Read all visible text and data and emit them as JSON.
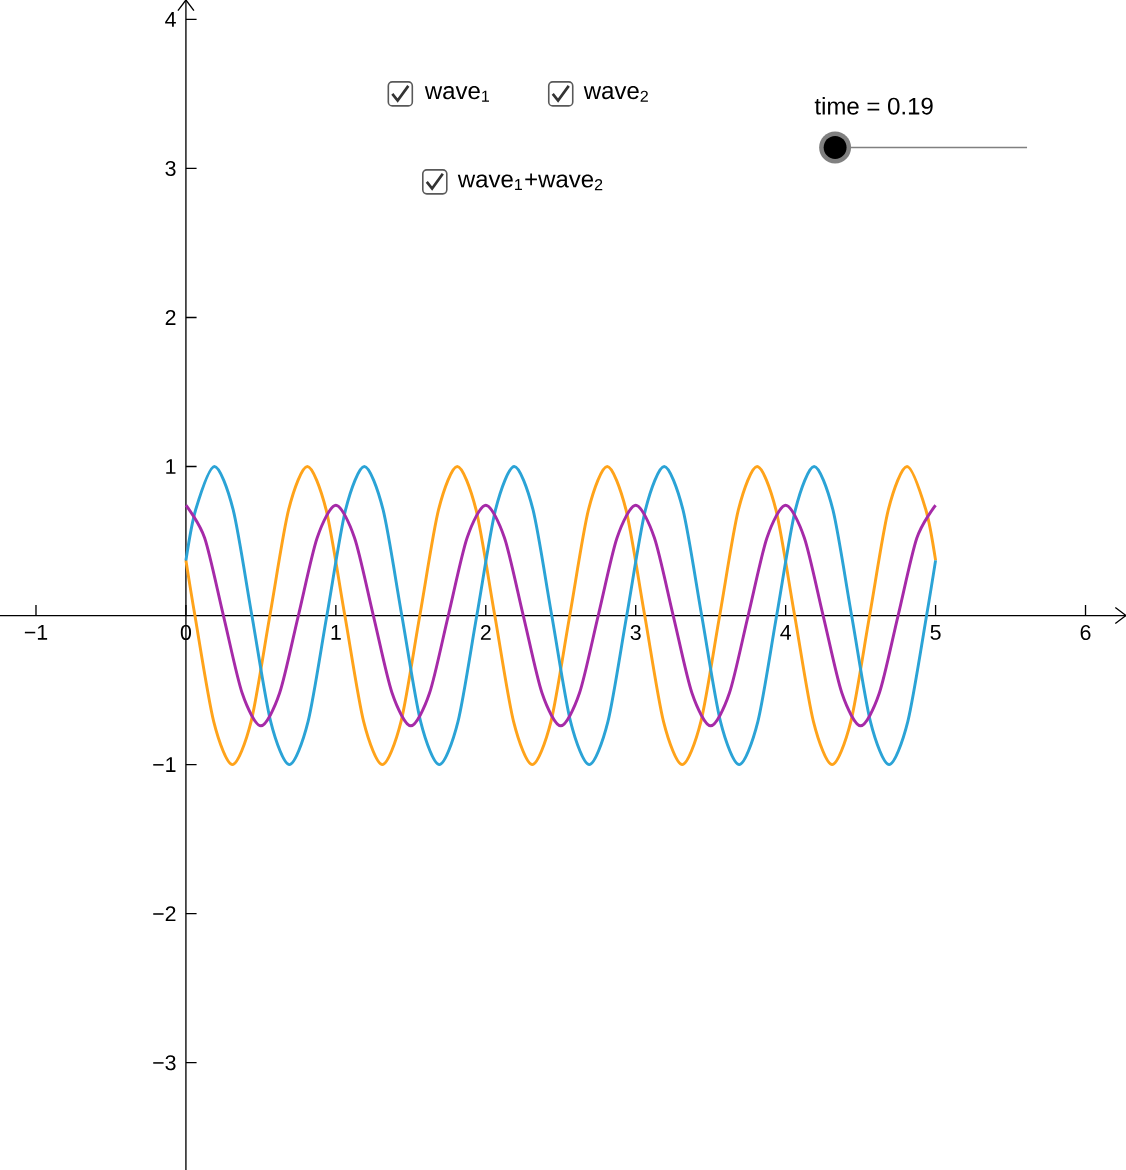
{
  "chart_data": {
    "type": "line",
    "xlim": [
      -1.24,
      6.27
    ],
    "ylim": [
      -3.72,
      4.13
    ],
    "xticks": [
      {
        "value": -1,
        "label": "−1"
      },
      0,
      1,
      2,
      3,
      4,
      5,
      6
    ],
    "yticks": [
      {
        "value": -3,
        "label": "−3"
      },
      {
        "value": -2,
        "label": "−2"
      },
      {
        "value": -1,
        "label": "−1"
      },
      1,
      2,
      3,
      4
    ],
    "marker": "none",
    "line_style": "solid",
    "series": [
      {
        "color": "#ffa31a",
        "x": [
          0,
          0.06,
          0.185,
          0.31,
          0.435,
          0.56,
          0.685,
          0.81,
          0.935,
          1.06,
          1.185,
          1.31,
          1.435,
          1.56,
          1.685,
          1.81,
          1.935,
          2.06,
          2.185,
          2.31,
          2.435,
          2.56,
          2.685,
          2.81,
          2.935,
          3.06,
          3.185,
          3.31,
          3.435,
          3.56,
          3.685,
          3.81,
          3.935,
          4.06,
          4.185,
          4.31,
          4.435,
          4.56,
          4.685,
          4.81,
          4.935,
          5
        ],
        "values": [
          0.37,
          0,
          -0.71,
          -1,
          -0.71,
          0,
          0.71,
          1,
          0.71,
          0,
          -0.71,
          -1,
          -0.71,
          0,
          0.71,
          1,
          0.71,
          0,
          -0.71,
          -1,
          -0.71,
          0,
          0.71,
          1,
          0.71,
          0,
          -0.71,
          -1,
          -0.71,
          0,
          0.71,
          1,
          0.71,
          0,
          -0.71,
          -1,
          -0.71,
          0,
          0.71,
          1,
          0.71,
          0.37
        ]
      },
      {
        "color": "#2ba3d6",
        "x": [
          0,
          0.065,
          0.19,
          0.315,
          0.44,
          0.565,
          0.69,
          0.815,
          0.94,
          1.065,
          1.19,
          1.315,
          1.44,
          1.565,
          1.69,
          1.815,
          1.94,
          2.065,
          2.19,
          2.315,
          2.44,
          2.565,
          2.69,
          2.815,
          2.94,
          3.065,
          3.19,
          3.315,
          3.44,
          3.565,
          3.69,
          3.815,
          3.94,
          4.065,
          4.19,
          4.315,
          4.44,
          4.565,
          4.69,
          4.815,
          4.94,
          5
        ],
        "values": [
          0.37,
          0.71,
          1,
          0.71,
          0,
          -0.71,
          -1,
          -0.71,
          0,
          0.71,
          1,
          0.71,
          0,
          -0.71,
          -1,
          -0.71,
          0,
          0.71,
          1,
          0.71,
          0,
          -0.71,
          -1,
          -0.71,
          0,
          0.71,
          1,
          0.71,
          0,
          -0.71,
          -1,
          -0.71,
          0,
          0.71,
          1,
          0.71,
          0,
          -0.71,
          -1,
          -0.71,
          0,
          0.37
        ]
      },
      {
        "color": "#a62aa8",
        "x": [
          0,
          0.125,
          0.25,
          0.375,
          0.5,
          0.625,
          0.75,
          0.875,
          1,
          1.125,
          1.25,
          1.375,
          1.5,
          1.625,
          1.75,
          1.875,
          2,
          2.125,
          2.25,
          2.375,
          2.5,
          2.625,
          2.75,
          2.875,
          3,
          3.125,
          3.25,
          3.375,
          3.5,
          3.625,
          3.75,
          3.875,
          4,
          4.125,
          4.25,
          4.375,
          4.5,
          4.625,
          4.75,
          4.875,
          5
        ],
        "values": [
          0.74,
          0.52,
          0,
          -0.52,
          -0.74,
          -0.52,
          0,
          0.52,
          0.74,
          0.52,
          0,
          -0.52,
          -0.74,
          -0.52,
          0,
          0.52,
          0.74,
          0.52,
          0,
          -0.52,
          -0.74,
          -0.52,
          0,
          0.52,
          0.74,
          0.52,
          0,
          -0.52,
          -0.74,
          -0.52,
          0,
          0.52,
          0.74,
          0.52,
          0,
          -0.52,
          -0.74,
          -0.52,
          0,
          0.52,
          0.74
        ]
      }
    ],
    "annotations": [
      "wave$_{1}$",
      "wave$_{2}$",
      "wave$_{1}$+wave$_{2}$",
      "time = 0.19"
    ]
  }
}
